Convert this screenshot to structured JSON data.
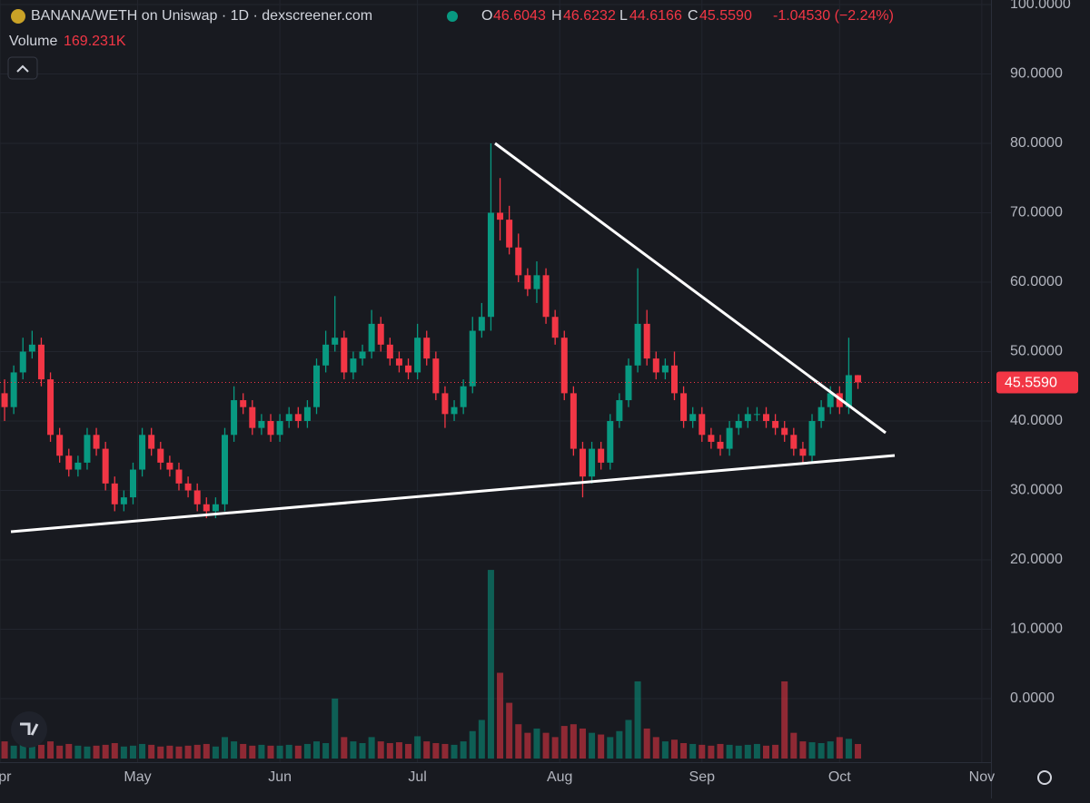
{
  "chart_data": {
    "type": "candlestick",
    "title": "BANANA/WETH on Uniswap · 1D · dexscreener.com",
    "ohlc_names": [
      "O",
      "H",
      "L",
      "C"
    ],
    "change": "-1.04530 (−2.24%)",
    "volume_name": "Volume",
    "up_color": "#089981",
    "down_color": "#f23645",
    "open": [
      44,
      42,
      47,
      50,
      51,
      46,
      38,
      35,
      33,
      34,
      38,
      36,
      31,
      28,
      29,
      33,
      38,
      36,
      34,
      33,
      31,
      30,
      28,
      27,
      28,
      38,
      43,
      42,
      39,
      40,
      38,
      40,
      41,
      40,
      42,
      48,
      51,
      52,
      47,
      49,
      50,
      54,
      51,
      49,
      48,
      47,
      52,
      49,
      44,
      41,
      42,
      45,
      53,
      55,
      70,
      69,
      65,
      61,
      59,
      61,
      55,
      52,
      44,
      36,
      32,
      36,
      34,
      40,
      43,
      48,
      54,
      49,
      47,
      48,
      44,
      40,
      41,
      38,
      37,
      36,
      39,
      40,
      41,
      41,
      40,
      39,
      38,
      36,
      35,
      40,
      42,
      44,
      42,
      46.6043
    ],
    "high": [
      46,
      48,
      52,
      53,
      52,
      47,
      39,
      36,
      35,
      39,
      39,
      37,
      32,
      30,
      34,
      39,
      39,
      37,
      35,
      34,
      32,
      31,
      29,
      29,
      39,
      45,
      44,
      43,
      41,
      41,
      41,
      42,
      42,
      43,
      49,
      53,
      58,
      53,
      50,
      51,
      56,
      55,
      52,
      50,
      49,
      54,
      53,
      50,
      45,
      43,
      46,
      55,
      57,
      80,
      75,
      71,
      67,
      62,
      63,
      62,
      56,
      53,
      45,
      37,
      37,
      37,
      41,
      44,
      49,
      62,
      56,
      50,
      49,
      50,
      45,
      42,
      42,
      39,
      38,
      40,
      41,
      42,
      42,
      42,
      41,
      40,
      39,
      37,
      41,
      43,
      45,
      45,
      52,
      46.6232
    ],
    "low": [
      40,
      41,
      46,
      49,
      45,
      37,
      34,
      32,
      32,
      33,
      35,
      30,
      27,
      27,
      28,
      32,
      35,
      33,
      32,
      30,
      29,
      27,
      26,
      26,
      27,
      37,
      41,
      38,
      38,
      37,
      37,
      39,
      39,
      39,
      41,
      47,
      50,
      46,
      46,
      48,
      49,
      50,
      48,
      47,
      46,
      46,
      48,
      43,
      39,
      40,
      41,
      44,
      52,
      53,
      66,
      64,
      60,
      58,
      57,
      54,
      51,
      43,
      35,
      29,
      31,
      33,
      33,
      39,
      42,
      47,
      48,
      46,
      46,
      43,
      39,
      39,
      37,
      36,
      35,
      35,
      38,
      39,
      40,
      39,
      38,
      37,
      35,
      34,
      34,
      39,
      41,
      41,
      41,
      44.6166
    ],
    "close": [
      42,
      47,
      50,
      51,
      46,
      38,
      35,
      33,
      34,
      38,
      36,
      31,
      28,
      29,
      33,
      38,
      36,
      34,
      33,
      31,
      30,
      28,
      27,
      28,
      38,
      43,
      42,
      39,
      40,
      38,
      40,
      41,
      40,
      42,
      48,
      51,
      52,
      47,
      49,
      50,
      54,
      51,
      49,
      48,
      47,
      52,
      49,
      44,
      41,
      42,
      45,
      53,
      55,
      70,
      69,
      65,
      61,
      59,
      61,
      55,
      52,
      44,
      36,
      32,
      36,
      34,
      40,
      43,
      48,
      54,
      49,
      47,
      48,
      44,
      40,
      41,
      38,
      37,
      36,
      39,
      40,
      41,
      41,
      40,
      39,
      38,
      36,
      35,
      40,
      42,
      44,
      42,
      46.6043,
      45.559
    ],
    "volume": {
      "values": [
        200,
        150,
        180,
        150,
        160,
        200,
        150,
        170,
        150,
        140,
        150,
        160,
        180,
        140,
        150,
        170,
        160,
        140,
        150,
        140,
        150,
        160,
        170,
        140,
        250,
        200,
        170,
        150,
        160,
        150,
        150,
        160,
        150,
        170,
        200,
        180,
        700,
        250,
        200,
        180,
        250,
        200,
        180,
        190,
        170,
        260,
        200,
        180,
        170,
        160,
        200,
        320,
        450,
        2200,
        1000,
        650,
        400,
        300,
        350,
        300,
        250,
        380,
        400,
        350,
        300,
        280,
        250,
        320,
        450,
        900,
        350,
        250,
        200,
        220,
        180,
        170,
        160,
        150,
        170,
        160,
        150,
        160,
        170,
        150,
        160,
        900,
        300,
        200,
        190,
        180,
        200,
        250,
        230,
        169.231
      ],
      "last_label": "169.231K"
    },
    "last_price": {
      "value": 45.559,
      "label": "45.5590"
    },
    "ylim": [
      -9.15,
      100.65
    ],
    "yticks": [
      {
        "value": 0,
        "label": "0.0000"
      },
      {
        "value": 10,
        "label": "10.0000"
      },
      {
        "value": 20,
        "label": "20.0000"
      },
      {
        "value": 30,
        "label": "30.0000"
      },
      {
        "value": 40,
        "label": "40.0000"
      },
      {
        "value": 50,
        "label": "50.0000"
      },
      {
        "value": 60,
        "label": "60.0000"
      },
      {
        "value": 70,
        "label": "70.0000"
      },
      {
        "value": 80,
        "label": "80.0000"
      },
      {
        "value": 90,
        "label": "90.0000"
      },
      {
        "value": 100,
        "label": "100.0000"
      }
    ],
    "xlim": [
      0,
      108
    ],
    "xticks": [
      {
        "value": 0,
        "label": "Apr"
      },
      {
        "value": 15,
        "label": "May"
      },
      {
        "value": 30.5,
        "label": "Jun"
      },
      {
        "value": 45.5,
        "label": "Jul"
      },
      {
        "value": 61,
        "label": "Aug"
      },
      {
        "value": 76.5,
        "label": "Sep"
      },
      {
        "value": 91.5,
        "label": "Oct"
      },
      {
        "value": 107,
        "label": "Nov"
      }
    ]
  }
}
